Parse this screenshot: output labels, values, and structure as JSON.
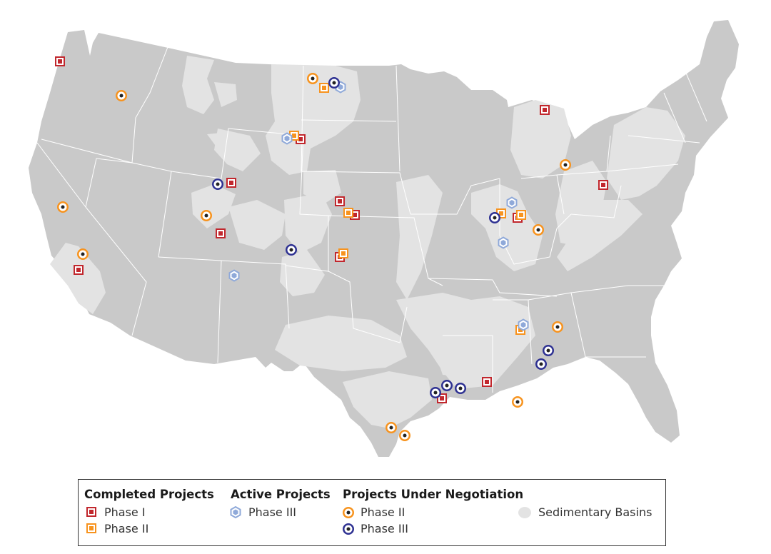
{
  "legend": {
    "completed": {
      "title": "Completed Projects",
      "items": [
        {
          "label": "Phase I",
          "symbol": "square-red"
        },
        {
          "label": "Phase II",
          "symbol": "square-orange"
        }
      ]
    },
    "active": {
      "title": "Active Projects",
      "items": [
        {
          "label": "Phase III",
          "symbol": "hexagon-blue"
        }
      ]
    },
    "negotiation": {
      "title": "Projects Under Negotiation",
      "items": [
        {
          "label": "Phase II",
          "symbol": "circle-orange"
        },
        {
          "label": "Phase III",
          "symbol": "circle-blue"
        }
      ]
    },
    "basins": {
      "label": "Sedimentary Basins",
      "symbol": "blob-lightgray"
    }
  },
  "colors": {
    "land": "#c9c9c9",
    "basin": "#e3e3e3",
    "borders": "#ffffff",
    "phase1_red": "#c1272d",
    "phase2_orange": "#f7931e",
    "phase3_blue": "#2e3192",
    "active_blue": "#8fa9d9"
  }
}
